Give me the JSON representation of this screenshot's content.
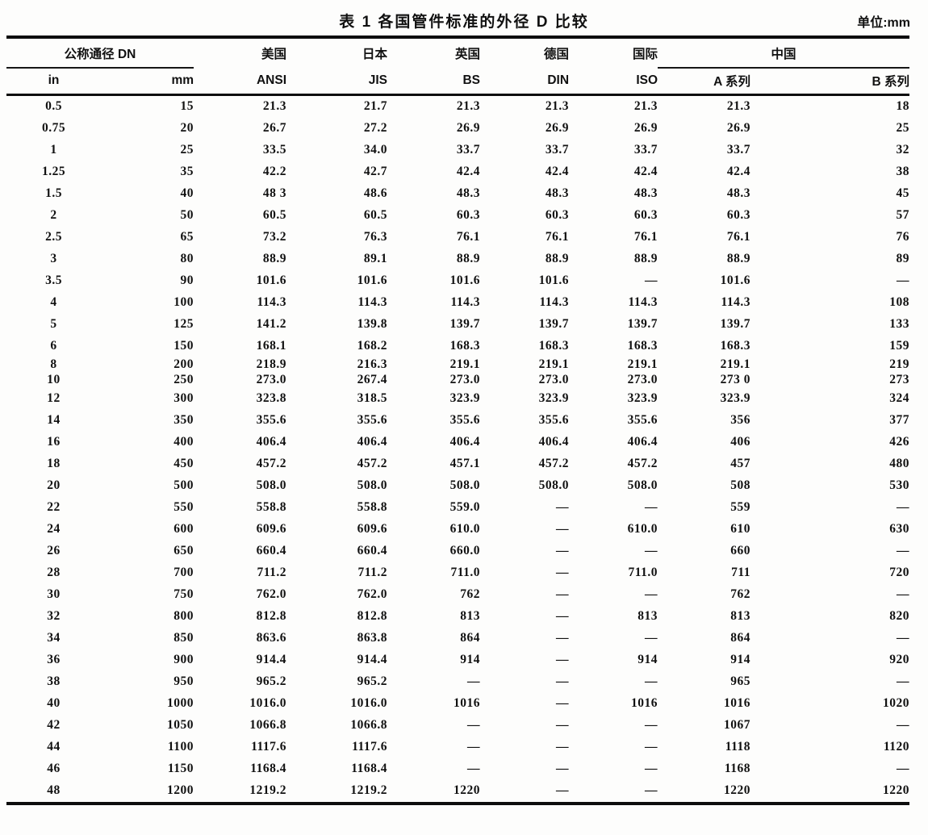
{
  "page": {
    "title": "表 1  各国管件标准的外径 D 比较",
    "unit_label": "单位:mm"
  },
  "table": {
    "group_headers": {
      "dn": "公称通径 DN",
      "usa": "美国",
      "japan": "日本",
      "uk": "英国",
      "germany": "德国",
      "intl": "国际",
      "china": "中国"
    },
    "sub_headers": {
      "inch": "in",
      "mm": "mm",
      "ansi": "ANSI",
      "jis": "JIS",
      "bs": "BS",
      "din": "DIN",
      "iso": "ISO",
      "series_a": "A 系列",
      "series_b": "B 系列"
    },
    "rows": [
      [
        "0.5",
        "15",
        "21.3",
        "21.7",
        "21.3",
        "21.3",
        "21.3",
        "21.3",
        "18"
      ],
      [
        "0.75",
        "20",
        "26.7",
        "27.2",
        "26.9",
        "26.9",
        "26.9",
        "26.9",
        "25"
      ],
      [
        "1",
        "25",
        "33.5",
        "34.0",
        "33.7",
        "33.7",
        "33.7",
        "33.7",
        "32"
      ],
      [
        "1.25",
        "35",
        "42.2",
        "42.7",
        "42.4",
        "42.4",
        "42.4",
        "42.4",
        "38"
      ],
      [
        "1.5",
        "40",
        "48 3",
        "48.6",
        "48.3",
        "48.3",
        "48.3",
        "48.3",
        "45"
      ],
      [
        "2",
        "50",
        "60.5",
        "60.5",
        "60.3",
        "60.3",
        "60.3",
        "60.3",
        "57"
      ],
      [
        "2.5",
        "65",
        "73.2",
        "76.3",
        "76.1",
        "76.1",
        "76.1",
        "76.1",
        "76"
      ],
      [
        "3",
        "80",
        "88.9",
        "89.1",
        "88.9",
        "88.9",
        "88.9",
        "88.9",
        "89"
      ],
      [
        "3.5",
        "90",
        "101.6",
        "101.6",
        "101.6",
        "101.6",
        "—",
        "101.6",
        "—"
      ],
      [
        "4",
        "100",
        "114.3",
        "114.3",
        "114.3",
        "114.3",
        "114.3",
        "114.3",
        "108"
      ],
      [
        "5",
        "125",
        "141.2",
        "139.8",
        "139.7",
        "139.7",
        "139.7",
        "139.7",
        "133"
      ],
      [
        "6",
        "150",
        "168.1",
        "168.2",
        "168.3",
        "168.3",
        "168.3",
        "168.3",
        "159"
      ],
      [
        "8",
        "200",
        "218.9",
        "216.3",
        "219.1",
        "219.1",
        "219.1",
        "219.1",
        "219"
      ],
      [
        "10",
        "250",
        "273.0",
        "267.4",
        "273.0",
        "273.0",
        "273.0",
        "273 0",
        "273"
      ],
      [
        "12",
        "300",
        "323.8",
        "318.5",
        "323.9",
        "323.9",
        "323.9",
        "323.9",
        "324"
      ],
      [
        "14",
        "350",
        "355.6",
        "355.6",
        "355.6",
        "355.6",
        "355.6",
        "356",
        "377"
      ],
      [
        "16",
        "400",
        "406.4",
        "406.4",
        "406.4",
        "406.4",
        "406.4",
        "406",
        "426"
      ],
      [
        "18",
        "450",
        "457.2",
        "457.2",
        "457.1",
        "457.2",
        "457.2",
        "457",
        "480"
      ],
      [
        "20",
        "500",
        "508.0",
        "508.0",
        "508.0",
        "508.0",
        "508.0",
        "508",
        "530"
      ],
      [
        "22",
        "550",
        "558.8",
        "558.8",
        "559.0",
        "—",
        "—",
        "559",
        "—"
      ],
      [
        "24",
        "600",
        "609.6",
        "609.6",
        "610.0",
        "—",
        "610.0",
        "610",
        "630"
      ],
      [
        "26",
        "650",
        "660.4",
        "660.4",
        "660.0",
        "—",
        "—",
        "660",
        "—"
      ],
      [
        "28",
        "700",
        "711.2",
        "711.2",
        "711.0",
        "—",
        "711.0",
        "711",
        "720"
      ],
      [
        "30",
        "750",
        "762.0",
        "762.0",
        "762",
        "—",
        "—",
        "762",
        "—"
      ],
      [
        "32",
        "800",
        "812.8",
        "812.8",
        "813",
        "—",
        "813",
        "813",
        "820"
      ],
      [
        "34",
        "850",
        "863.6",
        "863.8",
        "864",
        "—",
        "—",
        "864",
        "—"
      ],
      [
        "36",
        "900",
        "914.4",
        "914.4",
        "914",
        "—",
        "914",
        "914",
        "920"
      ],
      [
        "38",
        "950",
        "965.2",
        "965.2",
        "—",
        "—",
        "—",
        "965",
        "—"
      ],
      [
        "40",
        "1000",
        "1016.0",
        "1016.0",
        "1016",
        "—",
        "1016",
        "1016",
        "1020"
      ],
      [
        "42",
        "1050",
        "1066.8",
        "1066.8",
        "—",
        "—",
        "—",
        "1067",
        "—"
      ],
      [
        "44",
        "1100",
        "1117.6",
        "1117.6",
        "—",
        "—",
        "—",
        "1118",
        "1120"
      ],
      [
        "46",
        "1150",
        "1168.4",
        "1168.4",
        "—",
        "—",
        "—",
        "1168",
        "—"
      ],
      [
        "48",
        "1200",
        "1219.2",
        "1219.2",
        "1220",
        "—",
        "—",
        "1220",
        "1220"
      ]
    ]
  }
}
